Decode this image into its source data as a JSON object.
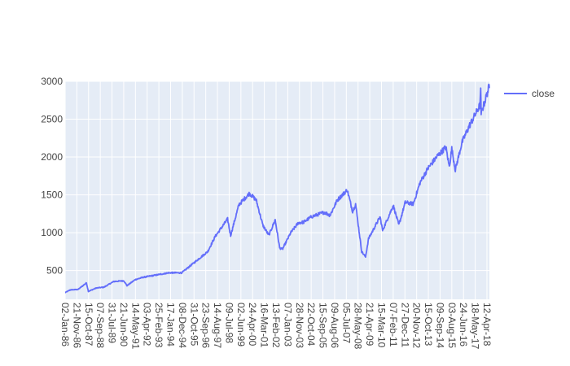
{
  "chart_data": {
    "type": "line",
    "title": "",
    "xlabel": "",
    "ylabel": "",
    "x_range": [
      "1986-01-02",
      "2018-09-28"
    ],
    "ylim": [
      120,
      3000
    ],
    "yticks": [
      500,
      1000,
      1500,
      2000,
      2500,
      3000
    ],
    "xtick_labels": [
      "02-Jan-86",
      "21-Nov-86",
      "15-Oct-87",
      "07-Sep-88",
      "31-Jul-89",
      "21-Jun-90",
      "14-May-91",
      "03-Apr-92",
      "25-Feb-93",
      "17-Jan-94",
      "08-Dec-94",
      "31-Oct-95",
      "23-Sep-96",
      "14-Aug-97",
      "09-Jul-98",
      "02-Jun-99",
      "24-Apr-00",
      "16-Mar-01",
      "13-Feb-02",
      "07-Jan-03",
      "28-Nov-03",
      "22-Oct-04",
      "15-Sep-05",
      "09-Aug-06",
      "05-Jul-07",
      "28-May-08",
      "21-Apr-09",
      "15-Mar-10",
      "07-Feb-11",
      "27-Dec-11",
      "20-Nov-12",
      "15-Oct-13",
      "09-Sep-14",
      "03-Aug-15",
      "24-Jun-16",
      "18-May-17",
      "12-Apr-18"
    ],
    "legend_position": "top-right",
    "grid": true,
    "series": [
      {
        "name": "close",
        "color": "#636efa",
        "x": [
          "1986-01-02",
          "1986-06-01",
          "1987-01-01",
          "1987-08-25",
          "1987-10-19",
          "1988-06-01",
          "1989-01-01",
          "1989-10-01",
          "1990-07-15",
          "1990-10-11",
          "1991-06-01",
          "1992-01-01",
          "1993-01-01",
          "1994-01-01",
          "1995-01-01",
          "1996-01-01",
          "1997-01-01",
          "1997-08-01",
          "1998-07-17",
          "1998-10-08",
          "1999-06-01",
          "2000-03-24",
          "2000-10-01",
          "2001-04-04",
          "2001-09-21",
          "2002-03-19",
          "2002-07-23",
          "2002-10-09",
          "2003-06-01",
          "2004-01-01",
          "2004-06-01",
          "2005-01-01",
          "2006-01-01",
          "2006-06-13",
          "2007-01-01",
          "2007-10-09",
          "2008-03-10",
          "2008-06-01",
          "2008-11-20",
          "2009-03-09",
          "2009-06-01",
          "2010-04-23",
          "2010-07-02",
          "2011-04-29",
          "2011-10-03",
          "2012-04-01",
          "2012-11-15",
          "2013-05-21",
          "2013-12-31",
          "2014-09-18",
          "2015-05-21",
          "2015-08-25",
          "2015-11-03",
          "2016-02-11",
          "2016-08-15",
          "2017-03-01",
          "2017-12-31",
          "2018-01-26",
          "2018-02-08",
          "2018-05-01",
          "2018-09-20",
          "2018-09-28"
        ],
        "y": [
          209,
          245,
          250,
          337,
          225,
          270,
          280,
          355,
          365,
          300,
          380,
          410,
          440,
          470,
          470,
          610,
          750,
          950,
          1180,
          960,
          1370,
          1520,
          1430,
          1100,
          965,
          1170,
          800,
          780,
          1000,
          1130,
          1140,
          1210,
          1270,
          1230,
          1430,
          1565,
          1280,
          1380,
          750,
          680,
          920,
          1210,
          1030,
          1360,
          1100,
          1400,
          1380,
          1660,
          1850,
          2010,
          2130,
          1870,
          2110,
          1830,
          2190,
          2400,
          2680,
          2870,
          2580,
          2700,
          2930,
          2910
        ]
      }
    ]
  }
}
